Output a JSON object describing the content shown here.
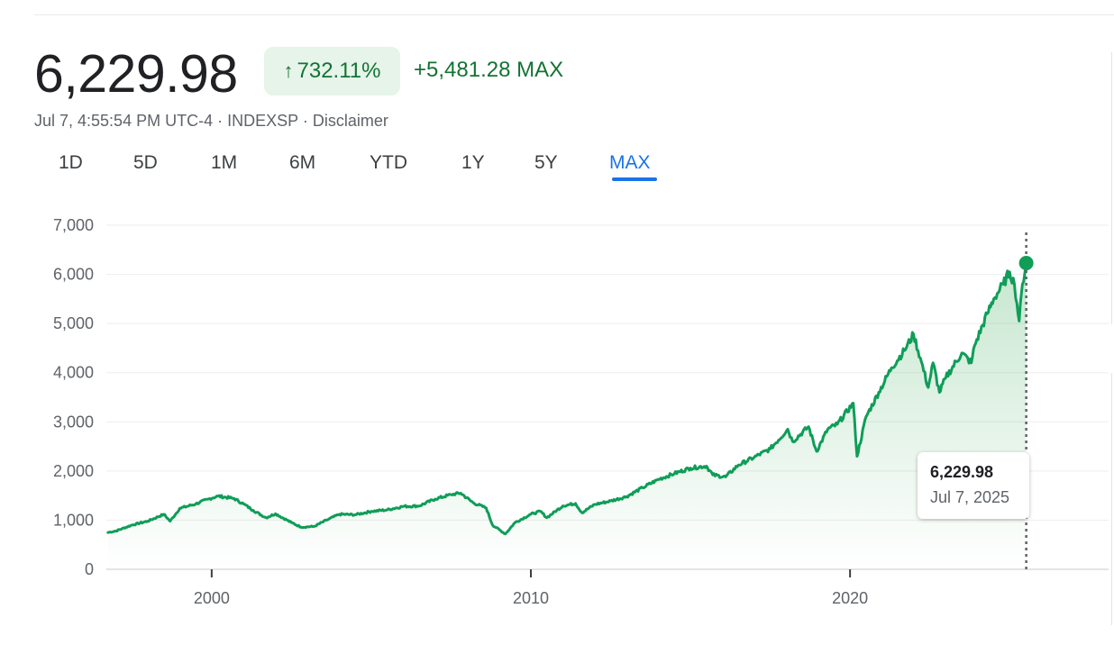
{
  "header": {
    "price": "6,229.98",
    "percent_change": "732.11%",
    "absolute_change": "+5,481.28",
    "range_label": "MAX",
    "timestamp": "Jul 7, 4:55:54 PM UTC-4",
    "exchange": "INDEXSP",
    "disclaimer": "Disclaimer",
    "separator": "·"
  },
  "tabs": [
    {
      "label": "1D",
      "active": false
    },
    {
      "label": "5D",
      "active": false
    },
    {
      "label": "1M",
      "active": false
    },
    {
      "label": "6M",
      "active": false
    },
    {
      "label": "YTD",
      "active": false
    },
    {
      "label": "1Y",
      "active": false
    },
    {
      "label": "5Y",
      "active": false
    },
    {
      "label": "MAX",
      "active": true
    }
  ],
  "tooltip": {
    "value": "6,229.98",
    "date": "Jul 7, 2025"
  },
  "colors": {
    "positive": "#137333",
    "line": "#0f9d58",
    "chip_bg": "#e6f4ea",
    "active_tab": "#1a73e8"
  },
  "chart_data": {
    "type": "area",
    "title": "",
    "xlabel": "",
    "ylabel": "",
    "xlim": [
      1996.7,
      2025.7
    ],
    "ylim": [
      0,
      7000
    ],
    "y_ticks": [
      0,
      1000,
      2000,
      3000,
      4000,
      5000,
      6000,
      7000
    ],
    "y_tick_labels": [
      "0",
      "1,000",
      "2,000",
      "3,000",
      "4,000",
      "5,000",
      "6,000",
      "7,000"
    ],
    "x_ticks": [
      2000,
      2010,
      2020
    ],
    "x_tick_labels": [
      "2000",
      "2010",
      "2020"
    ],
    "grid": true,
    "legend": "none",
    "series": [
      {
        "values_xy": [
          [
            1996.75,
            750
          ],
          [
            1997.0,
            780
          ],
          [
            1997.5,
            900
          ],
          [
            1998.0,
            980
          ],
          [
            1998.5,
            1120
          ],
          [
            1998.7,
            980
          ],
          [
            1999.0,
            1240
          ],
          [
            1999.5,
            1330
          ],
          [
            1999.9,
            1430
          ],
          [
            2000.2,
            1490
          ],
          [
            2000.7,
            1440
          ],
          [
            2001.0,
            1330
          ],
          [
            2001.3,
            1200
          ],
          [
            2001.7,
            1050
          ],
          [
            2002.0,
            1130
          ],
          [
            2002.5,
            950
          ],
          [
            2002.8,
            860
          ],
          [
            2003.2,
            870
          ],
          [
            2003.6,
            1000
          ],
          [
            2004.0,
            1120
          ],
          [
            2004.5,
            1110
          ],
          [
            2005.0,
            1180
          ],
          [
            2005.5,
            1210
          ],
          [
            2006.0,
            1280
          ],
          [
            2006.5,
            1290
          ],
          [
            2007.0,
            1430
          ],
          [
            2007.5,
            1520
          ],
          [
            2007.8,
            1550
          ],
          [
            2008.2,
            1350
          ],
          [
            2008.6,
            1250
          ],
          [
            2008.8,
            900
          ],
          [
            2009.2,
            720
          ],
          [
            2009.5,
            950
          ],
          [
            2010.0,
            1120
          ],
          [
            2010.3,
            1180
          ],
          [
            2010.5,
            1050
          ],
          [
            2011.0,
            1290
          ],
          [
            2011.4,
            1340
          ],
          [
            2011.6,
            1150
          ],
          [
            2012.0,
            1320
          ],
          [
            2012.5,
            1390
          ],
          [
            2013.0,
            1480
          ],
          [
            2013.5,
            1660
          ],
          [
            2014.0,
            1830
          ],
          [
            2014.5,
            1950
          ],
          [
            2015.0,
            2060
          ],
          [
            2015.5,
            2100
          ],
          [
            2015.7,
            1920
          ],
          [
            2016.1,
            1880
          ],
          [
            2016.5,
            2120
          ],
          [
            2017.0,
            2280
          ],
          [
            2017.5,
            2450
          ],
          [
            2018.05,
            2850
          ],
          [
            2018.2,
            2600
          ],
          [
            2018.7,
            2900
          ],
          [
            2018.95,
            2400
          ],
          [
            2019.3,
            2850
          ],
          [
            2019.6,
            2950
          ],
          [
            2020.1,
            3380
          ],
          [
            2020.22,
            2300
          ],
          [
            2020.5,
            3100
          ],
          [
            2020.9,
            3600
          ],
          [
            2021.3,
            4100
          ],
          [
            2021.7,
            4450
          ],
          [
            2021.99,
            4780
          ],
          [
            2022.2,
            4300
          ],
          [
            2022.45,
            3700
          ],
          [
            2022.6,
            4200
          ],
          [
            2022.8,
            3600
          ],
          [
            2023.0,
            3900
          ],
          [
            2023.5,
            4400
          ],
          [
            2023.8,
            4200
          ],
          [
            2023.9,
            4550
          ],
          [
            2024.3,
            5200
          ],
          [
            2024.5,
            5500
          ],
          [
            2024.8,
            5800
          ],
          [
            2025.0,
            6050
          ],
          [
            2025.15,
            5800
          ],
          [
            2025.3,
            5050
          ],
          [
            2025.4,
            5800
          ],
          [
            2025.52,
            6229.98
          ]
        ]
      }
    ]
  }
}
